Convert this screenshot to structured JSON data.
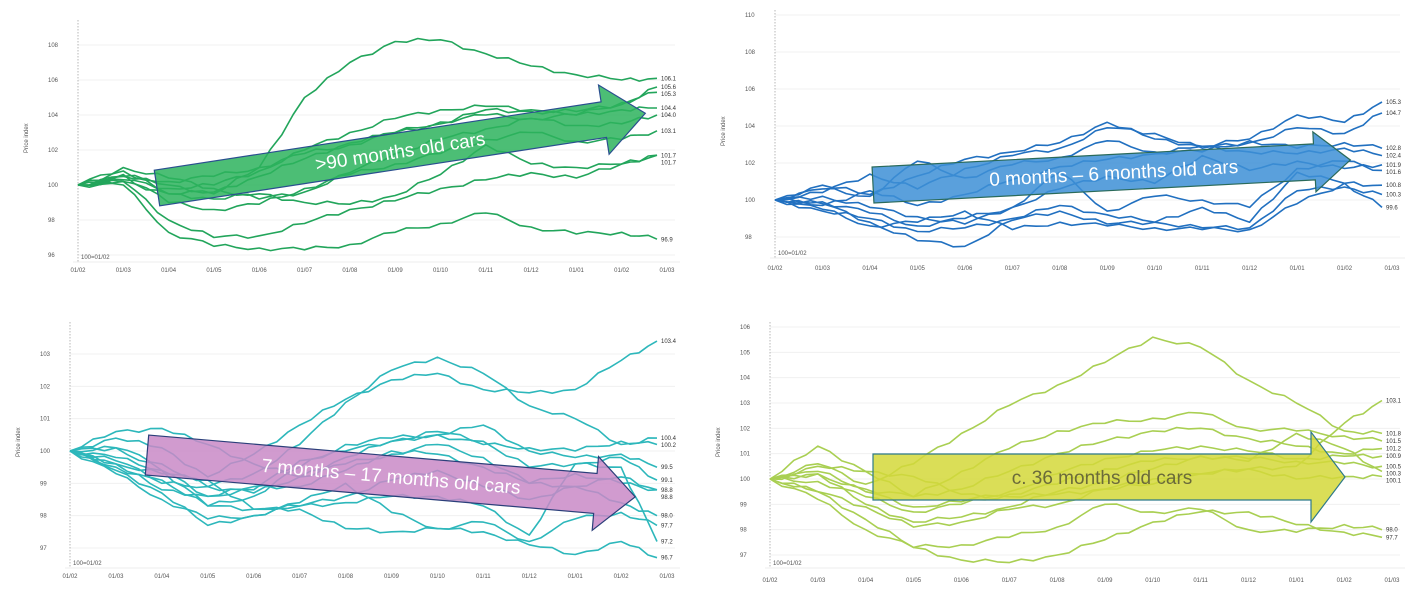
{
  "chart_data": [
    {
      "type": "line",
      "title": "",
      "arrow_label": ">90 months old cars",
      "ylabel": "Price index",
      "baseline_note": "100=01/02",
      "color": "#22a55b",
      "arrow_color": "#2db35d",
      "arrow_text_color": "#ffffff",
      "arrow_stroke": "#2a4f8f",
      "ylim": [
        95.5,
        108.8
      ],
      "yticks": [
        96,
        98,
        100,
        102,
        104,
        106,
        108
      ],
      "x": [
        "01/02",
        "01/03",
        "01/04",
        "01/05",
        "01/06",
        "01/07",
        "01/08",
        "01/09",
        "01/10",
        "01/11",
        "01/12",
        "01/01",
        "01/02",
        "01/03"
      ],
      "series": [
        {
          "end_label": "106.1",
          "values": [
            100,
            100.5,
            100,
            99.5,
            101,
            105,
            107,
            108.2,
            108.3,
            107.5,
            106.8,
            106.3,
            106,
            106.1
          ]
        },
        {
          "end_label": "105.6",
          "values": [
            100,
            100.3,
            99.8,
            100,
            100.8,
            102,
            103,
            103.8,
            104.3,
            104.5,
            104.3,
            104.2,
            104.6,
            105.6
          ]
        },
        {
          "end_label": "105.3",
          "values": [
            100,
            100.5,
            100.2,
            100.5,
            101,
            101.8,
            102.3,
            103,
            103.6,
            104,
            103.8,
            104,
            104.7,
            105.3
          ]
        },
        {
          "end_label": "104.4",
          "values": [
            100,
            100.2,
            99.5,
            99.6,
            100.5,
            101.5,
            102.4,
            103,
            103.5,
            104.3,
            104.2,
            104,
            104.3,
            104.4
          ]
        },
        {
          "end_label": "104.0",
          "values": [
            100,
            101,
            100.4,
            99.8,
            99.2,
            99.6,
            100.7,
            101.8,
            102.6,
            103.2,
            103.8,
            103.4,
            103.5,
            104.0
          ]
        },
        {
          "end_label": "103.1",
          "values": [
            100,
            100.6,
            99,
            98.6,
            98.9,
            99.8,
            100.6,
            101.2,
            101.8,
            102.6,
            103,
            102.5,
            102.6,
            103.1
          ]
        },
        {
          "end_label": "101.7",
          "values": [
            100,
            100.8,
            99.5,
            99.2,
            99.5,
            99,
            98.9,
            99.4,
            100.6,
            102.3,
            101.2,
            101,
            101.2,
            101.7
          ]
        },
        {
          "end_label": "101.7",
          "values": [
            100,
            100.2,
            98,
            97,
            97.1,
            97.8,
            98.6,
            99.1,
            99.8,
            100.3,
            100.7,
            100.4,
            101.2,
            101.7
          ]
        },
        {
          "end_label": "96.9",
          "values": [
            100,
            100,
            97.3,
            96.5,
            96.4,
            96.3,
            96.6,
            97.3,
            97.8,
            98.4,
            97.6,
            97.2,
            97.3,
            96.9
          ]
        }
      ]
    },
    {
      "type": "line",
      "title": "",
      "arrow_label": "0 months – 6 months old cars",
      "ylabel": "Price index",
      "baseline_note": "100=01/02",
      "color": "#2170c0",
      "arrow_color": "#3d8fd6",
      "arrow_text_color": "#ffffff",
      "arrow_stroke": "#2a6a5a",
      "ylim": [
        96.8,
        110.2
      ],
      "yticks": [
        98,
        100,
        102,
        104,
        106,
        108,
        110
      ],
      "x": [
        "01/02",
        "01/03",
        "01/04",
        "01/05",
        "01/06",
        "01/07",
        "01/08",
        "01/09",
        "01/10",
        "01/11",
        "01/12",
        "01/01",
        "01/02",
        "01/03"
      ],
      "series": [
        {
          "end_label": "105.3",
          "values": [
            100,
            100.8,
            100.3,
            101.3,
            102.2,
            102.6,
            103.1,
            104.2,
            103.3,
            102.9,
            103.3,
            104.6,
            104.2,
            105.3
          ]
        },
        {
          "end_label": "104.7",
          "values": [
            100,
            100.4,
            101.4,
            100.6,
            101.7,
            102.4,
            102.8,
            103.9,
            103.6,
            102.8,
            103.1,
            103.9,
            103.6,
            104.7
          ]
        },
        {
          "end_label": "102.8",
          "values": [
            100,
            100.6,
            100.2,
            102.1,
            101.2,
            101.9,
            102.3,
            103.2,
            102.6,
            102.6,
            103.2,
            102.8,
            103.1,
            102.8
          ]
        },
        {
          "end_label": "102.4",
          "values": [
            100,
            99.7,
            100.5,
            99.7,
            100.3,
            101.1,
            101.8,
            102.2,
            102.5,
            102.9,
            102.6,
            102.5,
            102.8,
            102.4
          ]
        },
        {
          "end_label": "101.9",
          "values": [
            100,
            100.2,
            99.6,
            99.1,
            98.7,
            99.6,
            100.6,
            101.3,
            100.9,
            102.4,
            101.6,
            102.1,
            101.7,
            101.9
          ]
        },
        {
          "end_label": "101.6",
          "values": [
            100,
            99.9,
            99.3,
            98.6,
            99.0,
            99.6,
            101.5,
            99.4,
            100.2,
            100.0,
            99.6,
            101.7,
            102.1,
            101.6
          ]
        },
        {
          "end_label": "100.8",
          "values": [
            100,
            99.4,
            99.0,
            98.3,
            98.5,
            99.0,
            99.7,
            99.2,
            98.8,
            99.6,
            98.8,
            101.5,
            100.9,
            100.8
          ]
        },
        {
          "end_label": "100.3",
          "values": [
            100,
            99.8,
            98.8,
            97.8,
            97.5,
            98.9,
            99.4,
            98.7,
            98.8,
            98.5,
            98.5,
            100.5,
            100.7,
            100.3
          ]
        },
        {
          "end_label": "99.6",
          "values": [
            100,
            99.5,
            98.6,
            98.8,
            99.4,
            98.4,
            98.8,
            98.6,
            98.5,
            98.4,
            98.4,
            99.8,
            100.9,
            99.6
          ]
        }
      ]
    },
    {
      "type": "line",
      "title": "",
      "arrow_label": "7 months – 17 months old cars",
      "ylabel": "Price index",
      "baseline_note": "100=01/02",
      "color": "#2db7bb",
      "arrow_color": "#c98ac7",
      "arrow_text_color": "#ffffff",
      "arrow_stroke": "#2b3f7a",
      "ylim": [
        96.4,
        103.8
      ],
      "yticks": [
        97,
        98,
        99,
        100,
        101,
        102,
        103
      ],
      "x": [
        "01/02",
        "01/03",
        "01/04",
        "01/05",
        "01/06",
        "01/07",
        "01/08",
        "01/09",
        "01/10",
        "01/11",
        "01/12",
        "01/01",
        "01/02",
        "01/03"
      ],
      "series": [
        {
          "end_label": "103.4",
          "values": [
            100,
            100.4,
            100.1,
            99.2,
            99.9,
            100.8,
            101.6,
            102.2,
            102.4,
            101.9,
            101.8,
            101.9,
            102.8,
            103.4
          ]
        },
        {
          "end_label": "100.4",
          "values": [
            100,
            100.1,
            99.6,
            98.9,
            99.3,
            100.2,
            101.5,
            102.5,
            102.9,
            102.4,
            101.4,
            101.0,
            100.2,
            100.4
          ]
        },
        {
          "end_label": "100.2",
          "values": [
            100,
            99.8,
            99.4,
            98.3,
            98.6,
            99.5,
            100.2,
            100.4,
            100.5,
            100.2,
            100.1,
            100.0,
            100.3,
            100.2
          ]
        },
        {
          "end_label": "99.5",
          "values": [
            100,
            100.6,
            100.7,
            100.2,
            99.6,
            99.2,
            99.8,
            100.3,
            100.5,
            100.8,
            100.0,
            99.8,
            99.9,
            99.5
          ]
        },
        {
          "end_label": "99.1",
          "values": [
            100,
            100.1,
            99.4,
            98.6,
            98.8,
            99.7,
            100.0,
            100.3,
            100.6,
            100.3,
            99.5,
            99.6,
            99.8,
            99.1
          ]
        },
        {
          "end_label": "98.8",
          "values": [
            100,
            99.5,
            99.0,
            98.9,
            98.7,
            99.2,
            99.6,
            99.9,
            100.2,
            99.8,
            99.0,
            99.3,
            99.0,
            98.8
          ]
        },
        {
          "end_label": "98.8",
          "values": [
            100,
            99.6,
            98.8,
            98.6,
            98.9,
            98.9,
            99.4,
            100.0,
            99.9,
            99.5,
            99.0,
            98.9,
            99.2,
            98.8
          ]
        },
        {
          "end_label": "98.0",
          "values": [
            100,
            99.7,
            99.1,
            98.3,
            98.2,
            98.3,
            98.6,
            99.1,
            99.4,
            98.9,
            98.5,
            98.9,
            98.4,
            98.0
          ]
        },
        {
          "end_label": "97.7",
          "values": [
            100,
            99.3,
            98.5,
            97.9,
            98.0,
            98.4,
            99.0,
            98.1,
            97.6,
            97.8,
            97.2,
            97.9,
            98.1,
            97.7
          ]
        },
        {
          "end_label": "97.2",
          "values": [
            100,
            99.4,
            98.7,
            97.7,
            98.0,
            98.3,
            98.4,
            98.6,
            98.6,
            98.3,
            97.4,
            99.6,
            99.5,
            97.2
          ]
        },
        {
          "end_label": "96.7",
          "values": [
            100,
            99.6,
            99.3,
            99.1,
            98.2,
            98.2,
            97.6,
            97.5,
            97.6,
            97.5,
            97.1,
            96.8,
            97.2,
            96.7
          ]
        }
      ]
    },
    {
      "type": "line",
      "title": "",
      "arrow_label": "c. 36 months old cars",
      "ylabel": "Price index",
      "baseline_note": "100=01/02",
      "color": "#a9cf52",
      "arrow_color": "#d3d83a",
      "arrow_text_color": "#6b6b3a",
      "arrow_stroke": "#2e7a8a",
      "ylim": [
        96.3,
        106.2
      ],
      "yticks": [
        97,
        98,
        99,
        100,
        101,
        102,
        103,
        104,
        105,
        106
      ],
      "x": [
        "01/02",
        "01/03",
        "01/04",
        "01/05",
        "01/06",
        "01/07",
        "01/08",
        "01/09",
        "01/10",
        "01/11",
        "01/12",
        "01/01",
        "01/02",
        "01/03"
      ],
      "series": [
        {
          "end_label": "103.1",
          "values": [
            100,
            100.5,
            100.3,
            100.1,
            99.4,
            99.3,
            99.4,
            99.6,
            99.8,
            100.2,
            100.4,
            100.5,
            102.2,
            103.1
          ]
        },
        {
          "end_label": "101.8",
          "values": [
            100,
            100.6,
            99.8,
            100.6,
            101.8,
            102.9,
            103.7,
            104.6,
            105.6,
            105.2,
            103.9,
            103.0,
            101.9,
            101.8
          ]
        },
        {
          "end_label": "101.5",
          "values": [
            100,
            100.3,
            99.6,
            99.3,
            100.3,
            101.2,
            101.9,
            102.2,
            102.4,
            102.6,
            102.0,
            101.9,
            101.7,
            101.5
          ]
        },
        {
          "end_label": "101.2",
          "values": [
            100,
            101.3,
            100.3,
            99.3,
            99.6,
            100.3,
            101.0,
            101.5,
            101.9,
            102.0,
            101.6,
            101.3,
            101.0,
            101.2
          ]
        },
        {
          "end_label": "100.9",
          "values": [
            100,
            100.2,
            99.5,
            98.9,
            99.1,
            99.5,
            100.2,
            100.8,
            101.1,
            101.3,
            101.1,
            100.8,
            100.9,
            100.9
          ]
        },
        {
          "end_label": "100.5",
          "values": [
            100,
            99.9,
            99.3,
            98.7,
            99.0,
            99.4,
            99.8,
            100.4,
            100.7,
            100.9,
            100.8,
            100.7,
            100.6,
            100.5
          ]
        },
        {
          "end_label": "100.3",
          "values": [
            100,
            100.2,
            99.0,
            98.3,
            98.5,
            98.9,
            99.5,
            99.9,
            100.4,
            100.9,
            100.7,
            101.8,
            101.2,
            100.3
          ]
        },
        {
          "end_label": "100.1",
          "values": [
            100,
            99.5,
            98.9,
            98.1,
            98.3,
            98.8,
            99.0,
            99.6,
            100.0,
            100.2,
            100.4,
            100.0,
            100.1,
            100.1
          ]
        },
        {
          "end_label": "98.0",
          "values": [
            100,
            99.2,
            98.0,
            97.3,
            97.4,
            97.7,
            98.1,
            99.0,
            98.7,
            98.8,
            98.0,
            97.9,
            98.2,
            98.0
          ]
        },
        {
          "end_label": "97.7",
          "values": [
            100,
            99.5,
            98.4,
            97.3,
            96.8,
            96.7,
            97.0,
            97.6,
            98.3,
            98.7,
            98.7,
            98.2,
            97.9,
            97.7
          ]
        }
      ]
    }
  ]
}
